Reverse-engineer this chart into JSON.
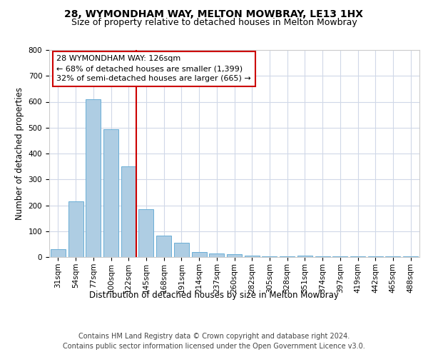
{
  "title": "28, WYMONDHAM WAY, MELTON MOWBRAY, LE13 1HX",
  "subtitle": "Size of property relative to detached houses in Melton Mowbray",
  "xlabel": "Distribution of detached houses by size in Melton Mowbray",
  "ylabel": "Number of detached properties",
  "categories": [
    "31sqm",
    "54sqm",
    "77sqm",
    "100sqm",
    "122sqm",
    "145sqm",
    "168sqm",
    "191sqm",
    "214sqm",
    "237sqm",
    "260sqm",
    "282sqm",
    "305sqm",
    "328sqm",
    "351sqm",
    "374sqm",
    "397sqm",
    "419sqm",
    "442sqm",
    "465sqm",
    "488sqm"
  ],
  "values": [
    30,
    215,
    610,
    495,
    350,
    185,
    82,
    55,
    20,
    15,
    10,
    5,
    4,
    3,
    5,
    4,
    3,
    4,
    3,
    3,
    3
  ],
  "bar_color": "#aecde3",
  "bar_edge_color": "#6aaed6",
  "highlight_line_color": "#cc0000",
  "highlight_bin_index": 4,
  "annotation_text": "28 WYMONDHAM WAY: 126sqm\n← 68% of detached houses are smaller (1,399)\n32% of semi-detached houses are larger (665) →",
  "annotation_box_color": "#ffffff",
  "annotation_box_edge_color": "#cc0000",
  "ylim": [
    0,
    800
  ],
  "yticks": [
    0,
    100,
    200,
    300,
    400,
    500,
    600,
    700,
    800
  ],
  "footer_line1": "Contains HM Land Registry data © Crown copyright and database right 2024.",
  "footer_line2": "Contains public sector information licensed under the Open Government Licence v3.0.",
  "background_color": "#ffffff",
  "grid_color": "#d0d8e8",
  "title_fontsize": 10,
  "subtitle_fontsize": 9,
  "axis_label_fontsize": 8.5,
  "tick_fontsize": 7.5,
  "footer_fontsize": 7,
  "annotation_fontsize": 8
}
